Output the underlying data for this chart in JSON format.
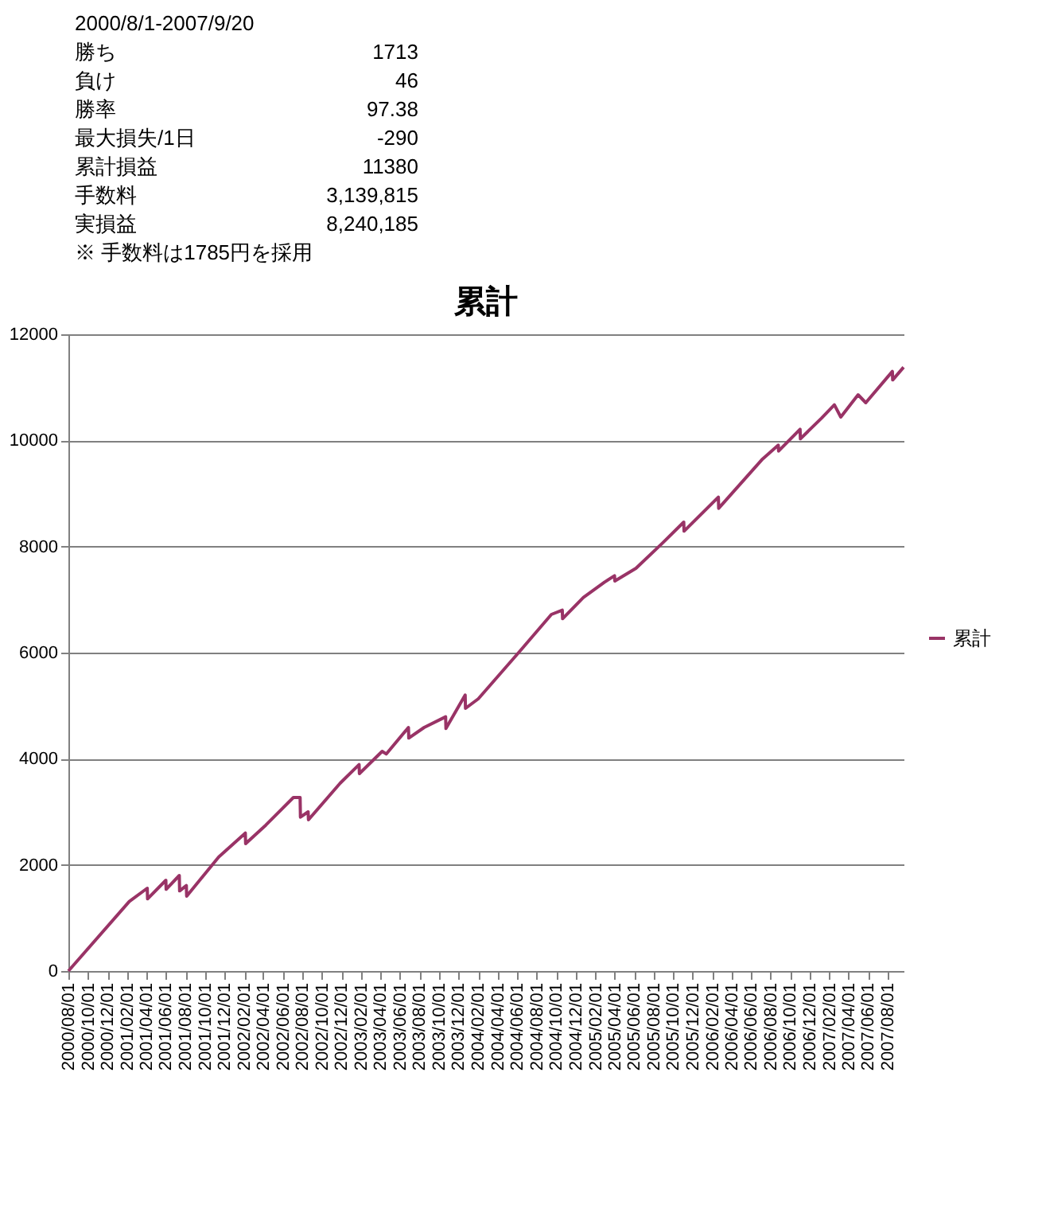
{
  "chart_data": {
    "type": "line",
    "title": "累計",
    "annotations": [
      "2000/8/1-2007/9/20",
      "勝ち",
      "1713",
      "負け",
      "46",
      "勝率",
      "97.38",
      "最大損失/1日",
      "-290",
      "累計損益",
      "11380",
      "手数料",
      "3,139,815",
      "実損益",
      "8,240,185",
      "※ 手数料は1785円を採用"
    ],
    "x": [
      "2000-08-01",
      "2001-02-07",
      "2001-04-04",
      "2001-04-05",
      "2001-06-01",
      "2001-06-02",
      "2001-07-13",
      "2001-07-14",
      "2001-08-04",
      "2001-08-05",
      "2001-11-13",
      "2002-02-04",
      "2002-02-05",
      "2002-04-09",
      "2002-07-04",
      "2002-07-25",
      "2002-07-26",
      "2002-08-19",
      "2002-08-20",
      "2002-11-27",
      "2003-01-25",
      "2003-01-26",
      "2003-04-07",
      "2003-04-20",
      "2003-06-28",
      "2003-06-29",
      "2003-08-16",
      "2003-10-22",
      "2003-10-23",
      "2003-12-22",
      "2003-12-23",
      "2004-02-01",
      "2004-06-10",
      "2004-09-16",
      "2004-10-20",
      "2004-10-21",
      "2004-12-25",
      "2005-03-01",
      "2005-04-01",
      "2005-04-02",
      "2005-06-07",
      "2005-08-28",
      "2005-11-03",
      "2005-11-04",
      "2006-02-19",
      "2006-02-20",
      "2006-07-07",
      "2006-08-25",
      "2006-08-26",
      "2006-11-01",
      "2006-11-02",
      "2007-01-07",
      "2007-02-16",
      "2007-03-08",
      "2007-05-01",
      "2007-05-25",
      "2007-08-16",
      "2007-08-17",
      "2007-09-20"
    ],
    "series": [
      {
        "name": "累計",
        "color": "#993366",
        "values": [
          0,
          1310,
          1560,
          1360,
          1710,
          1540,
          1800,
          1510,
          1610,
          1410,
          2150,
          2600,
          2400,
          2750,
          3270,
          3270,
          2900,
          3000,
          2850,
          3540,
          3890,
          3720,
          4140,
          4090,
          4590,
          4390,
          4590,
          4790,
          4570,
          5200,
          4950,
          5130,
          6030,
          6720,
          6800,
          6640,
          7040,
          7330,
          7450,
          7350,
          7590,
          8060,
          8460,
          8290,
          8930,
          8720,
          9650,
          9910,
          9800,
          10210,
          10030,
          10420,
          10670,
          10440,
          10860,
          10710,
          11300,
          11140,
          11380
        ]
      }
    ],
    "xlim": [
      "2000-08-01",
      "2007-09-20"
    ],
    "xticks": [
      {
        "value": "2000-08-01",
        "label": "2000/08/01"
      },
      {
        "value": "2000-10-01",
        "label": "2000/10/01"
      },
      {
        "value": "2000-12-01",
        "label": "2000/12/01"
      },
      {
        "value": "2001-02-01",
        "label": "2001/02/01"
      },
      {
        "value": "2001-04-01",
        "label": "2001/04/01"
      },
      {
        "value": "2001-06-01",
        "label": "2001/06/01"
      },
      {
        "value": "2001-08-01",
        "label": "2001/08/01"
      },
      {
        "value": "2001-10-01",
        "label": "2001/10/01"
      },
      {
        "value": "2001-12-01",
        "label": "2001/12/01"
      },
      {
        "value": "2002-02-01",
        "label": "2002/02/01"
      },
      {
        "value": "2002-04-01",
        "label": "2002/04/01"
      },
      {
        "value": "2002-06-01",
        "label": "2002/06/01"
      },
      {
        "value": "2002-08-01",
        "label": "2002/08/01"
      },
      {
        "value": "2002-10-01",
        "label": "2002/10/01"
      },
      {
        "value": "2002-12-01",
        "label": "2002/12/01"
      },
      {
        "value": "2003-02-01",
        "label": "2003/02/01"
      },
      {
        "value": "2003-04-01",
        "label": "2003/04/01"
      },
      {
        "value": "2003-06-01",
        "label": "2003/06/01"
      },
      {
        "value": "2003-08-01",
        "label": "2003/08/01"
      },
      {
        "value": "2003-10-01",
        "label": "2003/10/01"
      },
      {
        "value": "2003-12-01",
        "label": "2003/12/01"
      },
      {
        "value": "2004-02-01",
        "label": "2004/02/01"
      },
      {
        "value": "2004-04-01",
        "label": "2004/04/01"
      },
      {
        "value": "2004-06-01",
        "label": "2004/06/01"
      },
      {
        "value": "2004-08-01",
        "label": "2004/08/01"
      },
      {
        "value": "2004-10-01",
        "label": "2004/10/01"
      },
      {
        "value": "2004-12-01",
        "label": "2004/12/01"
      },
      {
        "value": "2005-02-01",
        "label": "2005/02/01"
      },
      {
        "value": "2005-04-01",
        "label": "2005/04/01"
      },
      {
        "value": "2005-06-01",
        "label": "2005/06/01"
      },
      {
        "value": "2005-08-01",
        "label": "2005/08/01"
      },
      {
        "value": "2005-10-01",
        "label": "2005/10/01"
      },
      {
        "value": "2005-12-01",
        "label": "2005/12/01"
      },
      {
        "value": "2006-02-01",
        "label": "2006/02/01"
      },
      {
        "value": "2006-04-01",
        "label": "2006/04/01"
      },
      {
        "value": "2006-06-01",
        "label": "2006/06/01"
      },
      {
        "value": "2006-08-01",
        "label": "2006/08/01"
      },
      {
        "value": "2006-10-01",
        "label": "2006/10/01"
      },
      {
        "value": "2006-12-01",
        "label": "2006/12/01"
      },
      {
        "value": "2007-02-01",
        "label": "2007/02/01"
      },
      {
        "value": "2007-04-01",
        "label": "2007/04/01"
      },
      {
        "value": "2007-06-01",
        "label": "2007/06/01"
      },
      {
        "value": "2007-08-01",
        "label": "2007/08/01"
      }
    ],
    "ylim": [
      0,
      12000
    ],
    "yticks": [
      0,
      2000,
      4000,
      6000,
      8000,
      10000,
      12000
    ],
    "grid": "y",
    "legend": "right",
    "marker": "none",
    "line_style": "solid"
  }
}
